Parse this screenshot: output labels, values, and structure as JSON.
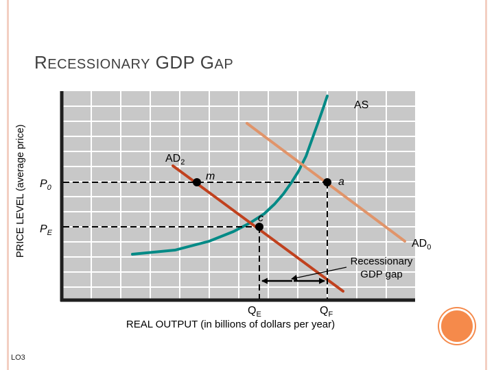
{
  "slide": {
    "title_initial_1": "R",
    "title_rest_1": "ECESSIONARY",
    "title_word_2": "GDP",
    "title_initial_3": "G",
    "title_rest_3": "AP",
    "footer": "LO3"
  },
  "axes": {
    "ylabel": "PRICE LEVEL (average price)",
    "xlabel": "REAL OUTPUT (in billions of dollars per year)"
  },
  "curves": {
    "as_label": "AS",
    "ad2_main": "AD",
    "ad2_sub": "2",
    "ad0_main": "AD",
    "ad0_sub": "0"
  },
  "points": {
    "m": "m",
    "a": "a",
    "c": "c"
  },
  "levels": {
    "p0_main": "P",
    "p0_sub": "0",
    "pe_main": "P",
    "pe_sub": "E",
    "qe_main": "Q",
    "qe_sub": "E",
    "qf_main": "Q",
    "qf_sub": "F"
  },
  "annotation": {
    "line1": "Recessionary",
    "line2": "GDP gap"
  },
  "colors": {
    "plot_bg": "#c8c8c8",
    "grid": "#ffffff",
    "axis": "#1f1f1f",
    "as_curve": "#008a86",
    "ad0_curve": "#e0946a",
    "ad2_curve": "#c0411e",
    "points": "#000000",
    "accent": "#f58a4b"
  }
}
